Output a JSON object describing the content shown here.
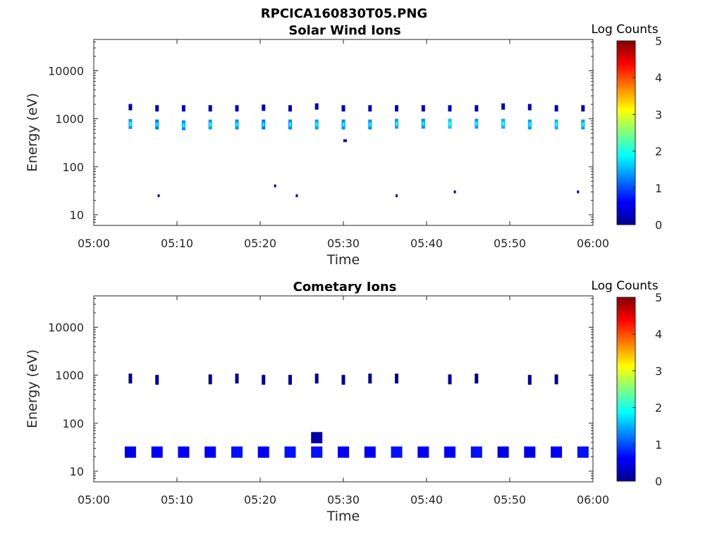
{
  "figure_title": "RPCICA160830T05.PNG",
  "chart_data": [
    {
      "type": "heatmap",
      "title": "Solar Wind Ions",
      "xlabel": "Time",
      "ylabel": "Energy (eV)",
      "yscale": "log",
      "ylim": [
        6,
        45000
      ],
      "xlim": [
        "05:00",
        "06:00"
      ],
      "x_ticks": [
        "05:00",
        "05:10",
        "05:20",
        "05:30",
        "05:40",
        "05:50",
        "06:00"
      ],
      "y_ticks": [
        "10",
        "100",
        "1000",
        "10000"
      ],
      "colorbar": {
        "label": "Log Counts",
        "range": [
          0,
          5
        ],
        "ticks": [
          "0",
          "1",
          "2",
          "3",
          "4",
          "5"
        ],
        "colormap": "jet"
      },
      "sweep_minutes": [
        4.4,
        7.6,
        10.8,
        14.0,
        17.2,
        20.4,
        23.6,
        26.8,
        30.0,
        33.2,
        36.4,
        39.6,
        42.8,
        46.0,
        49.2,
        52.4,
        55.6,
        58.8
      ],
      "points": [
        {
          "t": 4.4,
          "e": 1750,
          "c": 0.3
        },
        {
          "t": 4.4,
          "e": 780,
          "c": 1.4
        },
        {
          "t": 7.6,
          "e": 1650,
          "c": 0.3
        },
        {
          "t": 7.6,
          "e": 760,
          "c": 1.2
        },
        {
          "t": 7.8,
          "e": 25,
          "c": 0.2
        },
        {
          "t": 10.8,
          "e": 1650,
          "c": 0.3
        },
        {
          "t": 10.8,
          "e": 730,
          "c": 1.3
        },
        {
          "t": 14.0,
          "e": 1650,
          "c": 0.3
        },
        {
          "t": 14.0,
          "e": 760,
          "c": 1.4
        },
        {
          "t": 17.2,
          "e": 1650,
          "c": 0.3
        },
        {
          "t": 17.2,
          "e": 760,
          "c": 1.3
        },
        {
          "t": 20.4,
          "e": 1700,
          "c": 0.3
        },
        {
          "t": 20.4,
          "e": 760,
          "c": 1.2
        },
        {
          "t": 21.8,
          "e": 40,
          "c": 0.2
        },
        {
          "t": 23.6,
          "e": 1650,
          "c": 0.3
        },
        {
          "t": 23.6,
          "e": 760,
          "c": 1.3
        },
        {
          "t": 24.4,
          "e": 25,
          "c": 0.2
        },
        {
          "t": 26.8,
          "e": 1800,
          "c": 0.3
        },
        {
          "t": 26.8,
          "e": 760,
          "c": 1.4
        },
        {
          "t": 30.2,
          "e": 350,
          "c": 0.2
        },
        {
          "t": 30.0,
          "e": 1650,
          "c": 0.3
        },
        {
          "t": 30.0,
          "e": 760,
          "c": 1.3
        },
        {
          "t": 33.2,
          "e": 1650,
          "c": 0.3
        },
        {
          "t": 33.2,
          "e": 760,
          "c": 1.3
        },
        {
          "t": 36.4,
          "e": 1650,
          "c": 0.3
        },
        {
          "t": 36.4,
          "e": 790,
          "c": 1.4
        },
        {
          "t": 36.4,
          "e": 25,
          "c": 0.2
        },
        {
          "t": 39.6,
          "e": 1650,
          "c": 0.3
        },
        {
          "t": 39.6,
          "e": 790,
          "c": 1.3
        },
        {
          "t": 42.8,
          "e": 1650,
          "c": 0.3
        },
        {
          "t": 42.8,
          "e": 790,
          "c": 1.6
        },
        {
          "t": 43.4,
          "e": 30,
          "c": 0.2
        },
        {
          "t": 46.0,
          "e": 1650,
          "c": 0.3
        },
        {
          "t": 46.0,
          "e": 790,
          "c": 1.4
        },
        {
          "t": 49.2,
          "e": 1800,
          "c": 0.3
        },
        {
          "t": 49.2,
          "e": 790,
          "c": 1.5
        },
        {
          "t": 52.4,
          "e": 1750,
          "c": 0.3
        },
        {
          "t": 52.4,
          "e": 760,
          "c": 1.4
        },
        {
          "t": 55.6,
          "e": 1650,
          "c": 0.3
        },
        {
          "t": 55.6,
          "e": 760,
          "c": 1.5
        },
        {
          "t": 58.8,
          "e": 1650,
          "c": 0.3
        },
        {
          "t": 58.8,
          "e": 760,
          "c": 1.4
        },
        {
          "t": 58.2,
          "e": 30,
          "c": 0.2
        }
      ]
    },
    {
      "type": "heatmap",
      "title": "Cometary Ions",
      "xlabel": "Time",
      "ylabel": "Energy (eV)",
      "yscale": "log",
      "ylim": [
        6,
        45000
      ],
      "xlim": [
        "05:00",
        "06:00"
      ],
      "x_ticks": [
        "05:00",
        "05:10",
        "05:20",
        "05:30",
        "05:40",
        "05:50",
        "06:00"
      ],
      "y_ticks": [
        "10",
        "100",
        "1000",
        "10000"
      ],
      "colorbar": {
        "label": "Log Counts",
        "range": [
          0,
          5
        ],
        "ticks": [
          "0",
          "1",
          "2",
          "3",
          "4",
          "5"
        ],
        "colormap": "jet"
      },
      "sweep_minutes": [
        4.4,
        7.6,
        10.8,
        14.0,
        17.2,
        20.4,
        23.6,
        26.8,
        30.0,
        33.2,
        36.4,
        39.6,
        42.8,
        46.0,
        49.2,
        52.4,
        55.6,
        58.8
      ],
      "points": [
        {
          "t": 4.4,
          "e": 850,
          "c": 0.1
        },
        {
          "t": 7.6,
          "e": 800,
          "c": 0.1
        },
        {
          "t": 14.0,
          "e": 820,
          "c": 0.1
        },
        {
          "t": 17.2,
          "e": 850,
          "c": 0.1
        },
        {
          "t": 20.4,
          "e": 800,
          "c": 0.1
        },
        {
          "t": 23.6,
          "e": 800,
          "c": 0.1
        },
        {
          "t": 26.8,
          "e": 850,
          "c": 0.1
        },
        {
          "t": 30.0,
          "e": 800,
          "c": 0.1
        },
        {
          "t": 33.2,
          "e": 850,
          "c": 0.1
        },
        {
          "t": 36.4,
          "e": 850,
          "c": 0.1
        },
        {
          "t": 42.8,
          "e": 820,
          "c": 0.1
        },
        {
          "t": 46.0,
          "e": 850,
          "c": 0.1
        },
        {
          "t": 52.4,
          "e": 800,
          "c": 0.1
        },
        {
          "t": 55.6,
          "e": 820,
          "c": 0.1
        },
        {
          "t": 26.8,
          "e": 50,
          "c": 0.2
        },
        {
          "t": 4.4,
          "e": 25,
          "c": 0.5
        },
        {
          "t": 7.6,
          "e": 25,
          "c": 0.6
        },
        {
          "t": 10.8,
          "e": 25,
          "c": 0.6
        },
        {
          "t": 14.0,
          "e": 25,
          "c": 0.6
        },
        {
          "t": 17.2,
          "e": 25,
          "c": 0.7
        },
        {
          "t": 20.4,
          "e": 25,
          "c": 0.6
        },
        {
          "t": 23.6,
          "e": 25,
          "c": 0.7
        },
        {
          "t": 26.8,
          "e": 25,
          "c": 0.7
        },
        {
          "t": 30.0,
          "e": 25,
          "c": 0.6
        },
        {
          "t": 33.2,
          "e": 25,
          "c": 0.6
        },
        {
          "t": 36.4,
          "e": 25,
          "c": 0.7
        },
        {
          "t": 39.6,
          "e": 25,
          "c": 0.6
        },
        {
          "t": 42.8,
          "e": 25,
          "c": 0.6
        },
        {
          "t": 46.0,
          "e": 25,
          "c": 0.7
        },
        {
          "t": 49.2,
          "e": 25,
          "c": 0.5
        },
        {
          "t": 52.4,
          "e": 25,
          "c": 0.5
        },
        {
          "t": 55.6,
          "e": 25,
          "c": 0.6
        },
        {
          "t": 58.8,
          "e": 25,
          "c": 0.7
        }
      ]
    }
  ]
}
